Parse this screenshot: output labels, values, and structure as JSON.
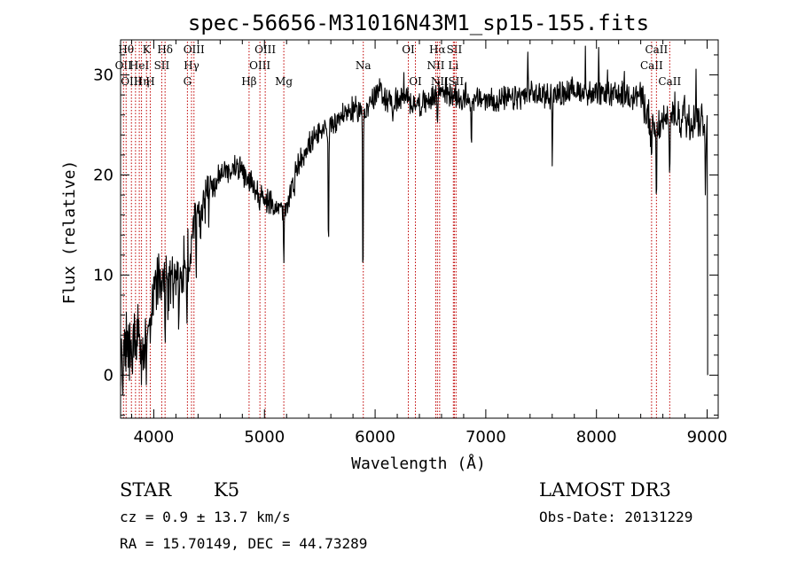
{
  "chart_data": {
    "type": "line",
    "title": "spec-56656-M31016N43M1_sp15-155.fits",
    "xlabel": "Wavelength (Å)",
    "ylabel": "Flux (relative)",
    "xlim": [
      3700,
      9100
    ],
    "ylim": [
      -4.3,
      33.5
    ],
    "xticks": [
      4000,
      5000,
      6000,
      7000,
      8000,
      9000
    ],
    "yticks": [
      0,
      10,
      20,
      30
    ],
    "xtick_labels": [
      "4000",
      "5000",
      "6000",
      "7000",
      "8000",
      "9000"
    ],
    "ytick_labels": [
      "0",
      "10",
      "20",
      "30"
    ],
    "continuum": [
      [
        3700,
        0
      ],
      [
        3750,
        3
      ],
      [
        3800,
        3
      ],
      [
        3850,
        4
      ],
      [
        3900,
        1
      ],
      [
        3950,
        6
      ],
      [
        4000,
        9
      ],
      [
        4050,
        10
      ],
      [
        4100,
        9
      ],
      [
        4150,
        9
      ],
      [
        4200,
        10
      ],
      [
        4250,
        10.5
      ],
      [
        4300,
        11
      ],
      [
        4350,
        14
      ],
      [
        4400,
        16
      ],
      [
        4450,
        17
      ],
      [
        4500,
        18.5
      ],
      [
        4550,
        19
      ],
      [
        4600,
        20
      ],
      [
        4650,
        20.5
      ],
      [
        4700,
        20.5
      ],
      [
        4750,
        21
      ],
      [
        4800,
        20
      ],
      [
        4850,
        19.5
      ],
      [
        4900,
        19
      ],
      [
        4950,
        18
      ],
      [
        5000,
        17.5
      ],
      [
        5050,
        17
      ],
      [
        5100,
        17
      ],
      [
        5150,
        16.5
      ],
      [
        5200,
        16.5
      ],
      [
        5250,
        19
      ],
      [
        5300,
        21
      ],
      [
        5400,
        23
      ],
      [
        5500,
        24
      ],
      [
        5600,
        25
      ],
      [
        5700,
        26
      ],
      [
        5800,
        26.5
      ],
      [
        5900,
        26.5
      ],
      [
        5950,
        27
      ],
      [
        6000,
        28
      ],
      [
        6050,
        28.5
      ],
      [
        6100,
        27.5
      ],
      [
        6200,
        27.5
      ],
      [
        6300,
        27.5
      ],
      [
        6400,
        27
      ],
      [
        6500,
        27.5
      ],
      [
        6600,
        28.5
      ],
      [
        6700,
        28
      ],
      [
        6800,
        27.5
      ],
      [
        7000,
        27.5
      ],
      [
        7200,
        27.5
      ],
      [
        7400,
        28
      ],
      [
        7600,
        28
      ],
      [
        7800,
        28.5
      ],
      [
        8000,
        28
      ],
      [
        8200,
        28
      ],
      [
        8400,
        28
      ],
      [
        8500,
        24.5
      ],
      [
        8600,
        25
      ],
      [
        8700,
        26
      ],
      [
        8800,
        25.5
      ],
      [
        8900,
        26
      ],
      [
        9000,
        25
      ]
    ],
    "dips": [
      [
        3933,
        3
      ],
      [
        3968,
        3
      ],
      [
        4102,
        6
      ],
      [
        4226,
        7
      ],
      [
        4300,
        6.5
      ],
      [
        4383,
        5
      ],
      [
        5175,
        5.5
      ],
      [
        5270,
        3
      ],
      [
        5578,
        13
      ],
      [
        5890,
        19
      ],
      [
        6160,
        3
      ],
      [
        6563,
        3
      ],
      [
        6870,
        4
      ],
      [
        7600,
        6.5
      ],
      [
        8498,
        5
      ],
      [
        8542,
        9
      ],
      [
        8662,
        5
      ],
      [
        8985,
        6
      ]
    ],
    "spikes": [
      [
        7380,
        4.5
      ],
      [
        7900,
        4
      ],
      [
        8020,
        3.5
      ],
      [
        8100,
        2.5
      ],
      [
        8250,
        2.5
      ],
      [
        8900,
        4.5
      ],
      [
        8795,
        3
      ],
      [
        6820,
        2.5
      ],
      [
        6260,
        2
      ]
    ],
    "noise": 1.0,
    "tail": [
      [
        9005,
        5
      ],
      [
        9005,
        0
      ]
    ],
    "line_markers": [
      {
        "wl": 3726,
        "row": 1,
        "label": "OII"
      },
      {
        "wl": 3750,
        "row": 0,
        "label": "Hθ"
      },
      {
        "wl": 3798,
        "row": 2,
        "label": "OIII"
      },
      {
        "wl": 3835,
        "row": 0,
        "label": ""
      },
      {
        "wl": 3869,
        "row": 1,
        "label": "HeI"
      },
      {
        "wl": 3889,
        "row": 2,
        "label": "Hη"
      },
      {
        "wl": 3934,
        "row": 0,
        "label": "K"
      },
      {
        "wl": 3968,
        "row": 2,
        "label": "H"
      },
      {
        "wl": 4072,
        "row": 1,
        "label": "SII"
      },
      {
        "wl": 4102,
        "row": 0,
        "label": "Hδ"
      },
      {
        "wl": 4304,
        "row": 2,
        "label": "G"
      },
      {
        "wl": 4341,
        "row": 1,
        "label": "Hγ"
      },
      {
        "wl": 4363,
        "row": 0,
        "label": "OIII"
      },
      {
        "wl": 4861,
        "row": 2,
        "label": "Hβ"
      },
      {
        "wl": 4959,
        "row": 1,
        "label": "OIII"
      },
      {
        "wl": 5007,
        "row": 0,
        "label": "OIII"
      },
      {
        "wl": 5175,
        "row": 2,
        "label": "Mg"
      },
      {
        "wl": 5893,
        "row": 1,
        "label": "Na"
      },
      {
        "wl": 6300,
        "row": 0,
        "label": "OI"
      },
      {
        "wl": 6364,
        "row": 2,
        "label": "OI"
      },
      {
        "wl": 6548,
        "row": 1,
        "label": "NII"
      },
      {
        "wl": 6563,
        "row": 0,
        "label": "Hα"
      },
      {
        "wl": 6583,
        "row": 2,
        "label": "NII"
      },
      {
        "wl": 6707,
        "row": 1,
        "label": "Li"
      },
      {
        "wl": 6716,
        "row": 0,
        "label": "SII"
      },
      {
        "wl": 6731,
        "row": 2,
        "label": "SII"
      },
      {
        "wl": 8498,
        "row": 1,
        "label": "CaII"
      },
      {
        "wl": 8542,
        "row": 0,
        "label": "CaII"
      },
      {
        "wl": 8662,
        "row": 2,
        "label": "CaII"
      }
    ]
  },
  "info": {
    "class": "STAR",
    "subclass": "K5",
    "survey": "LAMOST DR3",
    "cz": "cz = 0.9 ± 13.7 km/s",
    "obs_date": "Obs-Date: 20131229",
    "radec": "RA =  15.70149, DEC =  44.73289"
  },
  "colors": {
    "spectrum": "#000000",
    "marker": "#c00000",
    "axis": "#000000"
  }
}
